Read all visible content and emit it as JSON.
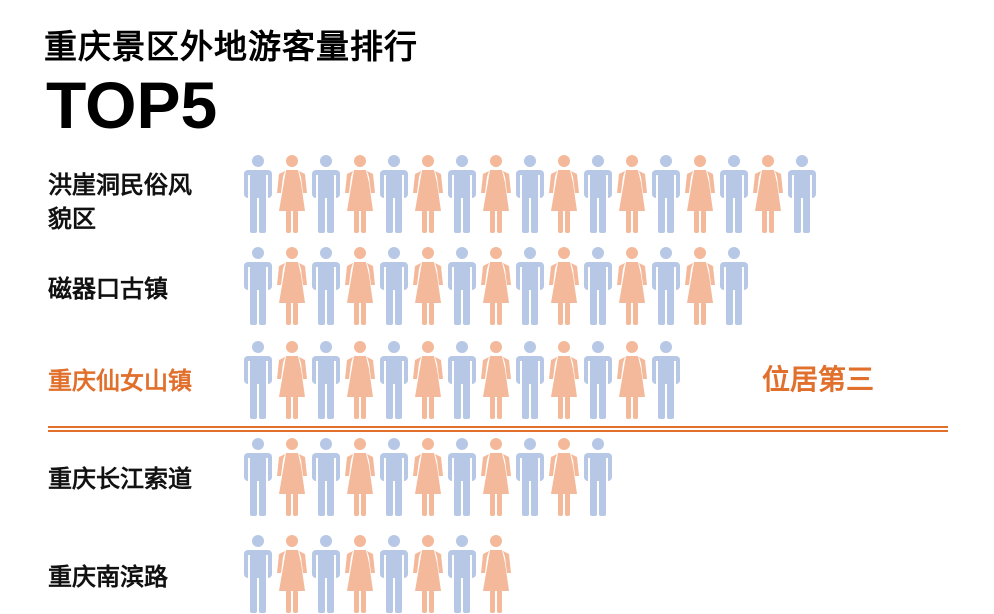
{
  "title": "重庆景区外地游客量排行",
  "subtitle": "TOP5",
  "chart_data": {
    "type": "bar",
    "categories": [
      "洪崖洞民俗风貌区",
      "磁器口古镇",
      "重庆仙女山镇",
      "重庆长江索道",
      "重庆南滨路"
    ],
    "values": [
      17,
      15,
      13,
      11,
      8
    ],
    "highlight_index": 2,
    "annotation": "位居第三",
    "icon_pattern": [
      "man-icon",
      "woman-icon"
    ]
  },
  "colors": {
    "male": "#b7c7e6",
    "female": "#f4b99a",
    "highlight": "#e0702c",
    "text": "#111111"
  }
}
